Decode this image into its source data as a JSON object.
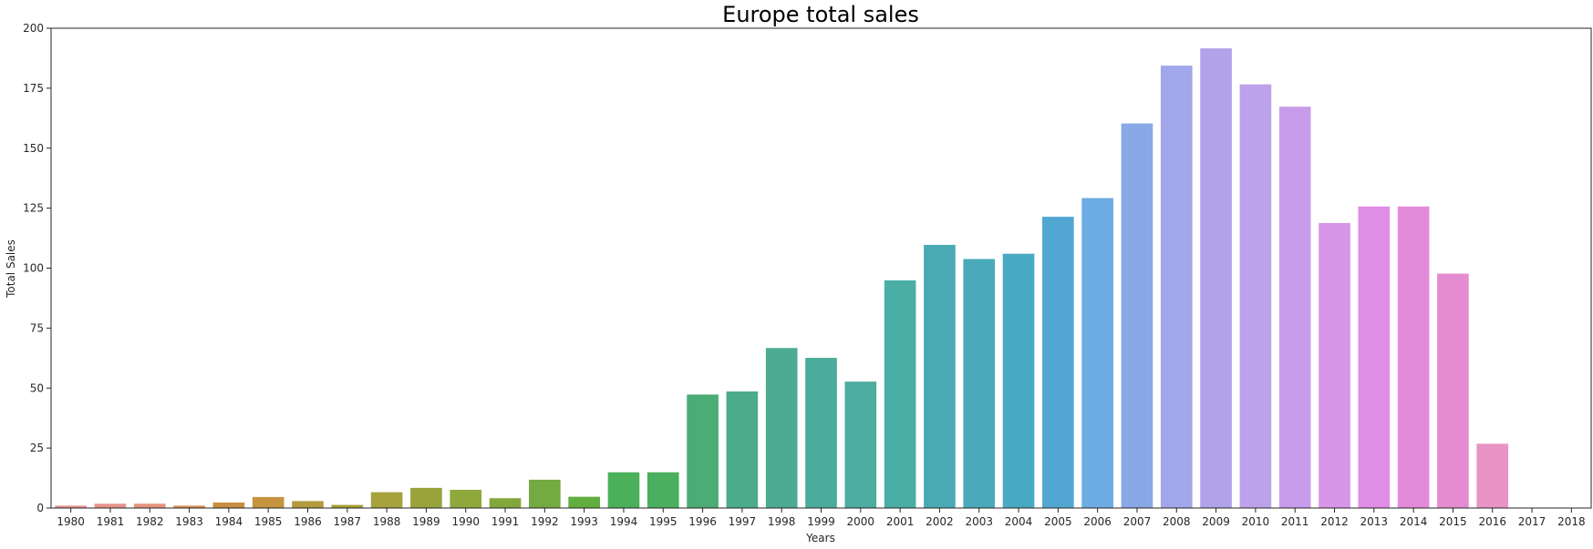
{
  "chart_data": {
    "type": "bar",
    "title": "Europe total sales",
    "xlabel": "Years",
    "ylabel": "Total Sales",
    "ylim": [
      0,
      200
    ],
    "yticks": [
      0,
      25,
      50,
      75,
      100,
      125,
      150,
      175,
      200
    ],
    "grid": false,
    "legend": "none",
    "categories": [
      "1980",
      "1981",
      "1982",
      "1983",
      "1984",
      "1985",
      "1986",
      "1987",
      "1988",
      "1989",
      "1990",
      "1991",
      "1992",
      "1993",
      "1994",
      "1995",
      "1996",
      "1997",
      "1998",
      "1999",
      "2000",
      "2001",
      "2002",
      "2003",
      "2004",
      "2005",
      "2006",
      "2007",
      "2008",
      "2009",
      "2010",
      "2011",
      "2012",
      "2013",
      "2014",
      "2015",
      "2016",
      "2017",
      "2018"
    ],
    "values": [
      1.0,
      1.8,
      1.8,
      1.0,
      2.3,
      4.6,
      2.9,
      1.3,
      6.6,
      8.4,
      7.6,
      4.1,
      11.8,
      4.7,
      14.9,
      14.9,
      47.3,
      48.6,
      66.7,
      62.6,
      52.7,
      94.9,
      109.7,
      103.8,
      106.0,
      121.4,
      129.2,
      160.3,
      184.4,
      191.6,
      176.6,
      167.3,
      118.8,
      125.7,
      125.7,
      97.7,
      26.8,
      0.0,
      0.0
    ],
    "colors": [
      "#e8938d",
      "#e7938a",
      "#e6937c",
      "#d79059",
      "#c88d40",
      "#c6933f",
      "#b39a3d",
      "#a6a036",
      "#a6a33c",
      "#98a43b",
      "#8ea83b",
      "#82a83b",
      "#74aa42",
      "#61ad3e",
      "#4bb05a",
      "#4aaf5e",
      "#4bac75",
      "#4bab8a",
      "#4cab92",
      "#4cac9b",
      "#4bac9f",
      "#4aaea6",
      "#49aab4",
      "#4aaabc",
      "#4aa9c2",
      "#51a7d2",
      "#6cace2",
      "#89a8e6",
      "#a2a6ea",
      "#b1a3ea",
      "#bca2ea",
      "#c89ceb",
      "#d896e8",
      "#e08de6",
      "#e38bdb",
      "#e58cd0",
      "#e894c4",
      "#ea95c1",
      "#eb97bd"
    ]
  }
}
